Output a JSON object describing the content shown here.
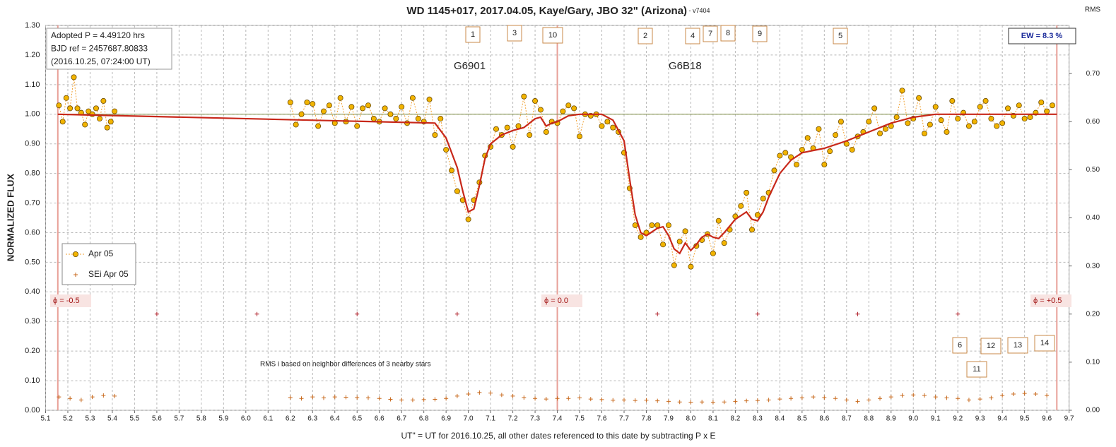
{
  "chart_data": {
    "type": "scatter",
    "title": "WD 1145+017, 2017.04.05, Kaye/Gary, JBO 32\" (Arizona)",
    "subtitle": " - v7404",
    "xlabel": "UT\" = UT for 2016.10.25, all other dates referenced to this date by subtracting P x E",
    "ylabel": "NORMALIZED FLUX",
    "y2label": "RMS",
    "xlim": [
      5.1,
      9.7
    ],
    "xticks": [
      5.1,
      5.2,
      5.3,
      5.4,
      5.5,
      5.6,
      5.7,
      5.8,
      5.9,
      {
        "value": 6,
        "label": "6.0"
      },
      6.1,
      6.2,
      6.3,
      6.4,
      6.5,
      6.6,
      6.7,
      6.8,
      6.9,
      {
        "value": 7,
        "label": "7.0"
      },
      7.1,
      7.2,
      7.3,
      7.4,
      7.5,
      7.6,
      7.7,
      7.8,
      7.9,
      {
        "value": 8,
        "label": "8.0"
      },
      8.1,
      8.2,
      8.3,
      8.4,
      8.5,
      8.6,
      8.7,
      8.8,
      8.9,
      {
        "value": 9,
        "label": "9.0"
      },
      9.1,
      9.2,
      9.3,
      9.4,
      9.5,
      9.6,
      9.7
    ],
    "ylim": [
      0,
      1.3
    ],
    "yticks": [
      {
        "value": 0,
        "label": "0.00"
      },
      {
        "value": 0.1,
        "label": "0.10"
      },
      {
        "value": 0.2,
        "label": "0.20"
      },
      {
        "value": 0.3,
        "label": "0.30"
      },
      {
        "value": 0.4,
        "label": "0.40"
      },
      {
        "value": 0.5,
        "label": "0.50"
      },
      {
        "value": 0.6,
        "label": "0.60"
      },
      {
        "value": 0.7,
        "label": "0.70"
      },
      {
        "value": 0.8,
        "label": "0.80"
      },
      {
        "value": 0.9,
        "label": "0.90"
      },
      {
        "value": 1,
        "label": "1.00"
      },
      {
        "value": 1.1,
        "label": "1.10"
      },
      {
        "value": 1.2,
        "label": "1.20"
      },
      {
        "value": 1.3,
        "label": "1.30"
      }
    ],
    "y2lim": [
      0,
      0.8
    ],
    "y2ticks": [
      {
        "value": 0,
        "label": "0.00"
      },
      {
        "value": 0.1,
        "label": "0.10"
      },
      {
        "value": 0.2,
        "label": "0.20"
      },
      {
        "value": 0.3,
        "label": "0.30"
      },
      {
        "value": 0.4,
        "label": "0.40"
      },
      {
        "value": 0.5,
        "label": "0.50"
      },
      {
        "value": 0.6,
        "label": "0.60"
      },
      {
        "value": 0.7,
        "label": "0.70"
      }
    ],
    "grid": true,
    "series": [
      {
        "name": "Apr 05",
        "color": "#f2b400",
        "marker": "circle",
        "x": [
          5.16,
          5.177,
          5.193,
          5.21,
          5.227,
          5.243,
          5.26,
          5.277,
          5.293,
          5.31,
          5.327,
          5.343,
          5.36,
          5.377,
          5.393,
          5.41,
          5.8,
          6.2,
          6.225,
          6.25,
          6.275,
          6.3,
          6.325,
          6.35,
          6.375,
          6.4,
          6.425,
          6.45,
          6.475,
          6.5,
          6.525,
          6.55,
          6.575,
          6.6,
          6.625,
          6.65,
          6.675,
          6.7,
          6.725,
          6.75,
          6.775,
          6.8,
          6.825,
          6.85,
          6.875,
          6.9,
          6.925,
          6.95,
          6.975,
          7.0,
          7.025,
          7.05,
          7.075,
          7.1,
          7.125,
          7.15,
          7.175,
          7.2,
          7.225,
          7.25,
          7.275,
          7.3,
          7.325,
          7.35,
          7.375,
          7.4,
          7.425,
          7.45,
          7.475,
          7.5,
          7.525,
          7.55,
          7.575,
          7.6,
          7.625,
          7.65,
          7.675,
          7.7,
          7.725,
          7.75,
          7.775,
          7.8,
          7.825,
          7.85,
          7.875,
          7.9,
          7.925,
          7.95,
          7.975,
          8.0,
          8.025,
          8.05,
          8.075,
          8.1,
          8.125,
          8.15,
          8.175,
          8.2,
          8.225,
          8.25,
          8.275,
          8.3,
          8.325,
          8.35,
          8.375,
          8.4,
          8.425,
          8.45,
          8.475,
          8.5,
          8.525,
          8.55,
          8.575,
          8.6,
          8.625,
          8.65,
          8.675,
          8.7,
          8.725,
          8.75,
          8.775,
          8.8,
          8.825,
          8.85,
          8.875,
          8.9,
          8.925,
          8.95,
          8.975,
          9.0,
          9.025,
          9.05,
          9.075,
          9.1,
          9.125,
          9.15,
          9.175,
          9.2,
          9.225,
          9.25,
          9.275,
          9.3,
          9.325,
          9.35,
          9.375,
          9.4,
          9.425,
          9.45,
          9.475,
          9.5,
          9.525,
          9.55,
          9.575,
          9.6,
          9.625
        ],
        "values": [
          1.03,
          0.975,
          1.055,
          1.02,
          1.125,
          1.02,
          1.005,
          0.965,
          1.01,
          1.0,
          1.02,
          0.985,
          1.045,
          0.955,
          0.975,
          1.01,
          null,
          1.04,
          0.965,
          1.0,
          1.04,
          1.035,
          0.96,
          1.01,
          1.03,
          0.97,
          1.055,
          0.975,
          1.025,
          0.96,
          1.02,
          1.03,
          0.985,
          0.975,
          1.02,
          1.0,
          0.985,
          1.025,
          0.97,
          1.055,
          0.985,
          0.975,
          1.05,
          0.93,
          0.985,
          0.88,
          0.81,
          0.74,
          0.71,
          0.645,
          0.71,
          0.77,
          0.86,
          0.89,
          0.95,
          0.93,
          0.955,
          0.89,
          0.96,
          1.06,
          0.93,
          1.045,
          1.015,
          0.94,
          0.975,
          0.97,
          1.01,
          1.03,
          1.02,
          0.925,
          1.0,
          0.995,
          1.0,
          0.96,
          0.975,
          0.955,
          0.94,
          0.87,
          0.75,
          0.625,
          0.585,
          0.6,
          0.625,
          0.625,
          0.56,
          0.625,
          0.49,
          0.57,
          0.605,
          0.485,
          0.555,
          0.575,
          0.595,
          0.53,
          0.64,
          0.565,
          0.61,
          0.655,
          0.69,
          0.735,
          0.61,
          0.66,
          0.715,
          0.735,
          0.81,
          0.86,
          0.87,
          0.855,
          0.83,
          0.88,
          0.92,
          0.885,
          0.95,
          0.83,
          0.875,
          0.93,
          0.975,
          0.9,
          0.88,
          0.925,
          0.94,
          0.975,
          1.02,
          0.935,
          0.95,
          0.96,
          0.99,
          1.08,
          0.97,
          0.985,
          1.055,
          0.935,
          0.965,
          1.025,
          0.98,
          0.94,
          1.045,
          0.985,
          1.005,
          0.96,
          0.975,
          1.025,
          1.045,
          0.985,
          0.96,
          0.97,
          1.02,
          0.995,
          1.03,
          0.985,
          0.99,
          1.005,
          1.04,
          1.01,
          1.03
        ]
      },
      {
        "name": "SEi Apr 05",
        "color": "#c8691c",
        "marker": "cross",
        "x": [
          5.16,
          5.21,
          5.26,
          5.31,
          5.36,
          5.41,
          5.8,
          6.2,
          6.25,
          6.3,
          6.35,
          6.4,
          6.45,
          6.5,
          6.55,
          6.6,
          6.65,
          6.7,
          6.75,
          6.8,
          6.85,
          6.9,
          6.95,
          7.0,
          7.05,
          7.1,
          7.15,
          7.2,
          7.25,
          7.3,
          7.35,
          7.4,
          7.45,
          7.5,
          7.55,
          7.6,
          7.65,
          7.7,
          7.75,
          7.8,
          7.85,
          7.9,
          7.95,
          8.0,
          8.05,
          8.1,
          8.15,
          8.2,
          8.25,
          8.3,
          8.35,
          8.4,
          8.45,
          8.5,
          8.55,
          8.6,
          8.65,
          8.7,
          8.75,
          8.8,
          8.85,
          8.9,
          8.95,
          9.0,
          9.05,
          9.1,
          9.15,
          9.2,
          9.25,
          9.3,
          9.35,
          9.4,
          9.45,
          9.5,
          9.55,
          9.6
        ],
        "values": [
          0.045,
          0.04,
          0.035,
          0.045,
          0.05,
          0.048,
          null,
          0.043,
          0.04,
          0.045,
          0.042,
          0.045,
          0.044,
          0.043,
          0.042,
          0.04,
          0.037,
          0.035,
          0.035,
          0.036,
          0.037,
          0.04,
          0.048,
          0.055,
          0.06,
          0.058,
          0.052,
          0.048,
          0.043,
          0.04,
          0.038,
          0.04,
          0.04,
          0.042,
          0.038,
          0.036,
          0.034,
          0.035,
          0.033,
          0.034,
          0.032,
          0.03,
          0.028,
          0.027,
          0.028,
          0.027,
          0.028,
          0.03,
          0.032,
          0.033,
          0.035,
          0.038,
          0.04,
          0.042,
          0.045,
          0.043,
          0.04,
          0.035,
          0.03,
          0.035,
          0.04,
          0.045,
          0.05,
          0.052,
          0.05,
          0.045,
          0.042,
          0.04,
          0.035,
          0.038,
          0.042,
          0.05,
          0.055,
          0.057,
          0.055,
          0.05
        ]
      },
      {
        "color": "#b0202a",
        "marker": "cross",
        "x": [
          5.6,
          6.05,
          6.5,
          6.95,
          7.85,
          8.3,
          8.75,
          9.2
        ],
        "values": [
          0.325,
          0.325,
          0.325,
          0.325,
          0.325,
          0.325,
          0.325,
          0.325
        ]
      }
    ],
    "fit": {
      "color": "#c8281a",
      "x": [
        5.155,
        6.85,
        6.9,
        6.95,
        6.975,
        7.0,
        7.025,
        7.05,
        7.075,
        7.1,
        7.15,
        7.2,
        7.25,
        7.3,
        7.325,
        7.35,
        7.375,
        7.4,
        7.45,
        7.5,
        7.6,
        7.65,
        7.7,
        7.725,
        7.75,
        7.775,
        7.8,
        7.85,
        7.875,
        7.9,
        7.925,
        7.95,
        7.975,
        8.0,
        8.025,
        8.05,
        8.075,
        8.1,
        8.125,
        8.15,
        8.2,
        8.25,
        8.275,
        8.3,
        8.325,
        8.35,
        8.4,
        8.45,
        8.5,
        8.6,
        8.7,
        8.8,
        8.9,
        9.0,
        9.1,
        9.645
      ],
      "values": [
        1.0,
        0.97,
        0.92,
        0.82,
        0.74,
        0.67,
        0.68,
        0.76,
        0.85,
        0.9,
        0.93,
        0.945,
        0.955,
        0.985,
        0.99,
        0.96,
        0.97,
        0.975,
        0.995,
        1.0,
        1.0,
        0.98,
        0.91,
        0.78,
        0.66,
        0.6,
        0.59,
        0.615,
        0.62,
        0.59,
        0.545,
        0.53,
        0.565,
        0.54,
        0.56,
        0.585,
        0.595,
        0.585,
        0.58,
        0.6,
        0.645,
        0.67,
        0.645,
        0.64,
        0.67,
        0.72,
        0.8,
        0.845,
        0.87,
        0.885,
        0.91,
        0.94,
        0.97,
        0.99,
        1.0,
        1.0
      ]
    },
    "phase_lines": [
      {
        "x": 5.155,
        "label": "ϕ = -0.5"
      },
      {
        "x": 7.4,
        "label": "ϕ = 0.0"
      },
      {
        "x": 9.645,
        "label": "ϕ = +0.5"
      }
    ],
    "info": [
      "Adopted P = 4.49120  hrs",
      "BJD ref = 2457687.80833",
      "(2016.10.25,  07:24:00  UT)"
    ],
    "ew": "EW = 8.3 %",
    "note": "RMS i based on neighbor differences of 3 nearby stars",
    "group_labels": [
      "G6901",
      "G6B18"
    ],
    "boxes": [
      "1",
      "3",
      "10",
      "2",
      "4",
      "7",
      "8",
      "9",
      "5",
      "6",
      "12",
      "13",
      "14",
      "11"
    ],
    "legend": "lower-left"
  }
}
